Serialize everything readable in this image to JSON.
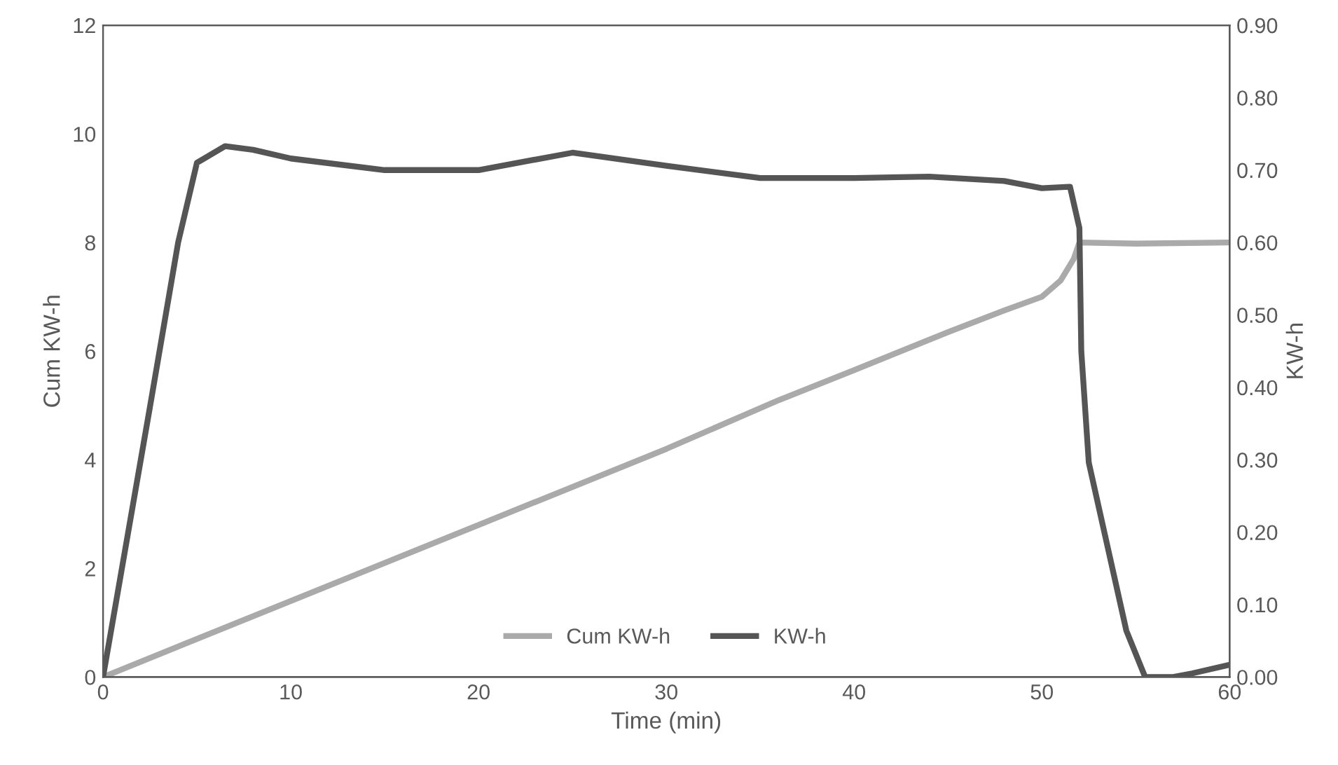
{
  "chart_data": {
    "type": "line",
    "xlabel": "Time (min)",
    "ylabel": "Cum KW-h",
    "y2label": "KW-h",
    "xlim": [
      0,
      60
    ],
    "xticks": [
      0,
      10,
      20,
      30,
      40,
      50,
      60
    ],
    "ylim": [
      0,
      12
    ],
    "yticks": [
      0,
      2,
      4,
      6,
      8,
      10,
      12
    ],
    "y2lim": [
      0,
      0.9
    ],
    "y2ticks": [
      {
        "value": 0,
        "label": "0.00"
      },
      {
        "value": 0.1,
        "label": "0.10"
      },
      {
        "value": 0.2,
        "label": "0.20"
      },
      {
        "value": 0.3,
        "label": "0.30"
      },
      {
        "value": 0.4,
        "label": "0.40"
      },
      {
        "value": 0.5,
        "label": "0.50"
      },
      {
        "value": 0.6,
        "label": "0.60"
      },
      {
        "value": 0.7,
        "label": "0.70"
      },
      {
        "value": 0.8,
        "label": "0.80"
      },
      {
        "value": 0.9,
        "label": "0.90"
      }
    ],
    "grid": false,
    "legend": "bottom",
    "marker": "none",
    "line_style": "solid",
    "series": [
      {
        "name": "Cum KW-h",
        "color": "#aaaaaa",
        "x": [
          0,
          10,
          20,
          30,
          36,
          40,
          45,
          48,
          50,
          51,
          51.7,
          52,
          55,
          60
        ],
        "values": [
          0,
          1.4,
          2.8,
          4.2,
          5.1,
          5.65,
          6.35,
          6.75,
          7.0,
          7.3,
          7.7,
          8.0,
          7.98,
          8.0
        ]
      },
      {
        "name": "KW-h",
        "color": "#555555",
        "axis": "y2",
        "x": [
          0,
          2.5,
          4,
          5,
          6.5,
          8,
          10,
          15,
          20,
          25,
          30,
          35,
          40,
          44,
          48,
          50,
          51.5,
          52,
          52.1,
          52.5,
          53.5,
          54.5,
          55.5,
          57,
          58,
          60
        ],
        "values": [
          0,
          0.373,
          0.6,
          0.71,
          0.733,
          0.728,
          0.716,
          0.7,
          0.7,
          0.724,
          0.706,
          0.689,
          0.689,
          0.691,
          0.685,
          0.675,
          0.677,
          0.62,
          0.45,
          0.296,
          0.18,
          0.064,
          0,
          0,
          0.005,
          0.017
        ]
      }
    ]
  }
}
